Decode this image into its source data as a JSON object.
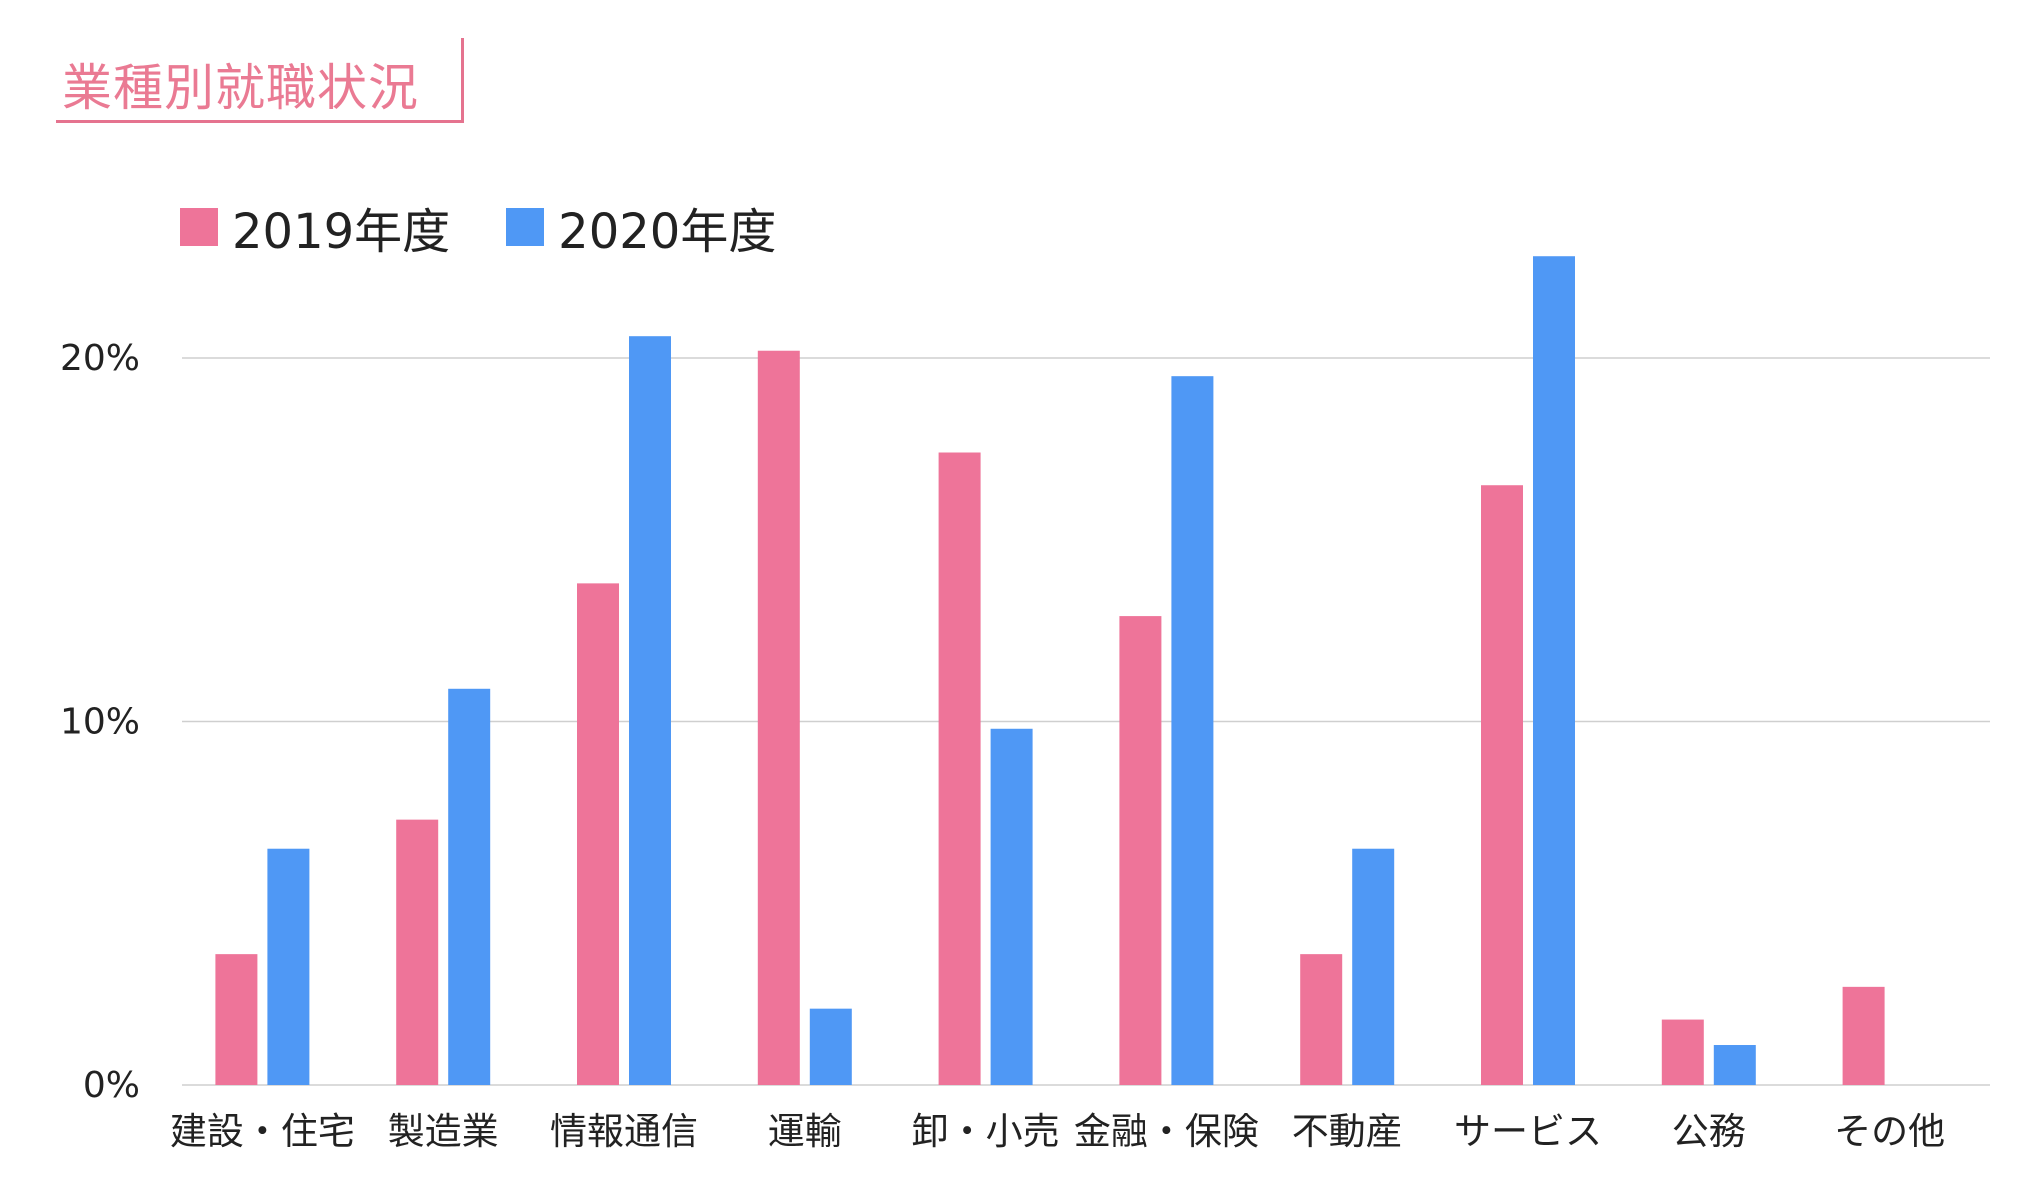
{
  "title": "業種別就職状況",
  "colors": {
    "accent": "#e5738f",
    "series1": "#ee7499",
    "series2": "#4f98f5",
    "grid": "#cfcfcf"
  },
  "chart_data": {
    "type": "bar",
    "categories": [
      "建設・住宅",
      "製造業",
      "情報通信",
      "運輸",
      "卸・小売",
      "金融・保険",
      "不動産",
      "サービス",
      "公務",
      "その他"
    ],
    "series": [
      {
        "name": "2019年度",
        "values": [
          3.6,
          7.3,
          13.8,
          20.2,
          17.4,
          12.9,
          3.6,
          16.5,
          1.8,
          2.7
        ]
      },
      {
        "name": "2020年度",
        "values": [
          6.5,
          10.9,
          20.6,
          2.1,
          9.8,
          19.5,
          6.5,
          22.8,
          1.1,
          0
        ]
      }
    ],
    "yticks": [
      0,
      10,
      20
    ],
    "ytick_labels": [
      "0%",
      "10%",
      "20%"
    ],
    "ylim": [
      0,
      24
    ],
    "grid": true,
    "legend": "top-left"
  }
}
